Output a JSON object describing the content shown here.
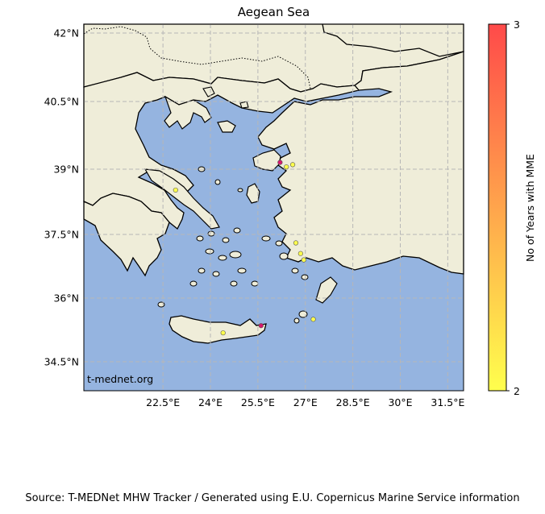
{
  "title": "Aegean Sea",
  "watermark": "t-mednet.org",
  "footer": "Source: T-MEDNet MHW Tracker / Generated using E.U. Copernicus Marine Service information",
  "lat_labels": [
    "42°N",
    "40.5°N",
    "39°N",
    "37.5°N",
    "36°N",
    "34.5°N"
  ],
  "lon_labels": [
    "22.5°E",
    "24°E",
    "25.5°E",
    "27°E",
    "28.5°E",
    "30°E",
    "31.5°E"
  ],
  "colorbar": {
    "label": "No of Years with MME",
    "min_label": "2",
    "max_label": "3",
    "min_color": "#ffff4d",
    "max_color": "#ff4a4a"
  },
  "colors": {
    "sea": "#95b4e0",
    "land": "#efedd9",
    "grid": "#b7b7b7"
  },
  "sites": [
    {
      "lon": 26.2,
      "lat": 39.15,
      "value": 3
    },
    {
      "lon": 26.4,
      "lat": 39.05,
      "value": 2
    },
    {
      "lon": 26.6,
      "lat": 39.1,
      "value": 2
    },
    {
      "lon": 25.6,
      "lat": 35.35,
      "value": 3
    },
    {
      "lon": 22.9,
      "lat": 38.52,
      "value": 2
    },
    {
      "lon": 26.7,
      "lat": 37.3,
      "value": 2
    },
    {
      "lon": 26.85,
      "lat": 37.05,
      "value": 2
    },
    {
      "lon": 26.95,
      "lat": 36.9,
      "value": 2
    },
    {
      "lon": 27.25,
      "lat": 35.5,
      "value": 2
    },
    {
      "lon": 24.4,
      "lat": 35.18,
      "value": 2
    }
  ]
}
